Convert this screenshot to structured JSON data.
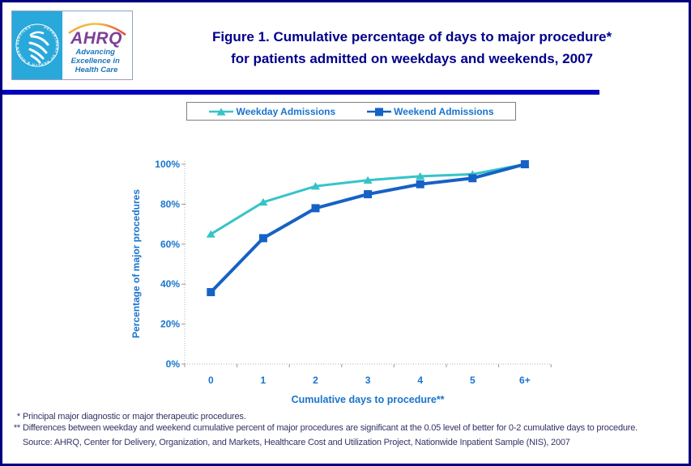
{
  "header": {
    "logo": {
      "acronym": "AHRQ",
      "tagline_lines": [
        "Advancing",
        "Excellence in",
        "Health Care"
      ],
      "hhs_circle_text": "DEPARTMENT OF HEALTH & HUMAN SERVICES · USA"
    },
    "title_line1": "Figure 1. Cumulative percentage of days to major procedure*",
    "title_line2": "for patients admitted on weekdays and weekends, 2007"
  },
  "legend": {
    "items": [
      {
        "label": "Weekday Admissions",
        "marker": "triangle",
        "color": "#35C4C8"
      },
      {
        "label": "Weekend Admissions",
        "marker": "square",
        "color": "#1661C6"
      }
    ]
  },
  "chart_data": {
    "type": "line",
    "x_categories": [
      "0",
      "1",
      "2",
      "3",
      "4",
      "5",
      "6+"
    ],
    "series": [
      {
        "name": "Weekday Admissions",
        "marker": "triangle",
        "color": "#35C4C8",
        "values": [
          65,
          81,
          89,
          92,
          94,
          95,
          100
        ]
      },
      {
        "name": "Weekend Admissions",
        "marker": "square",
        "color": "#1661C6",
        "values": [
          36,
          63,
          78,
          85,
          90,
          93,
          100
        ]
      }
    ],
    "xlabel": "Cumulative days to procedure**",
    "ylabel": "Percentage of major procedures",
    "y_ticks": [
      "0%",
      "20%",
      "40%",
      "60%",
      "80%",
      "100%"
    ],
    "ylim": [
      0,
      100
    ],
    "grid": false,
    "legend_position": "top-center-boxed"
  },
  "footnotes": [
    {
      "marker": "*",
      "text": "Principal major diagnostic or major therapeutic procedures."
    },
    {
      "marker": "**",
      "text": "Differences between weekday and weekend cumulative percent of major procedures are significant at the 0.05 level of better for 0-2 cumulative days to procedure."
    },
    {
      "marker": "",
      "text": "Source: AHRQ, Center for Delivery, Organization, and Markets, Healthcare Cost and Utilization Project, Nationwide Inpatient Sample (NIS), 2007"
    }
  ],
  "colors": {
    "page_border": "#000080",
    "header_rule": "#0000BE",
    "title_text": "#00008B",
    "axis_text": "#1874CD",
    "footnote_text": "#333366",
    "axis_line": "#B3B3B3",
    "tick": "#999999",
    "legend_border": "#808080",
    "logo_cyan": "#29A8DB",
    "ahrq_purple": "#7D3F98",
    "tagline_blue": "#1B75BC"
  }
}
